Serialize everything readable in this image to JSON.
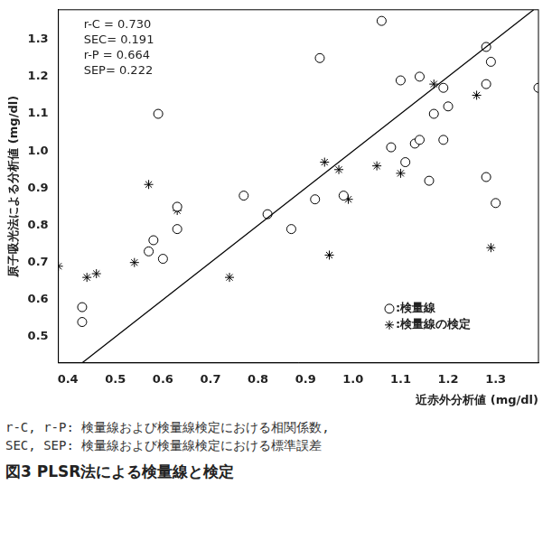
{
  "chart_data": {
    "type": "scatter",
    "title": "図3 PLSR法による検量線と検定",
    "notes": [
      "r-C, r-P: 検量線および検量線検定における相関係数,",
      "SEC, SEP: 検量線および検量線検定における標準誤差"
    ],
    "annotations": [
      "r-C = 0.730",
      "SEC= 0.191",
      "r-P = 0.664",
      "SEP= 0.222"
    ],
    "x_label": "近赤外分析値 (mg/dl)",
    "y_label": "原子吸光法による分析値 (mg/dl)",
    "xlim": [
      0.38,
      1.39
    ],
    "ylim": [
      0.43,
      1.38
    ],
    "xticks": [
      0.4,
      0.5,
      0.6,
      0.7,
      0.8,
      0.9,
      {
        "value": 1,
        "label": "1.0"
      },
      1.1,
      1.2,
      1.3
    ],
    "yticks": [
      0.5,
      0.6,
      0.7,
      0.8,
      0.9,
      {
        "value": 1,
        "label": "1.0"
      },
      1.1,
      1.2,
      1.3
    ],
    "grid": false,
    "legend": "lower right",
    "reference_line": {
      "x": [
        0.43,
        1.38
      ],
      "y": [
        0.43,
        1.38
      ],
      "color": "#000000"
    },
    "series": [
      {
        "name": ":検量線",
        "color": "#000000",
        "marker": "circle",
        "x": [
          0.43,
          0.43,
          0.57,
          0.58,
          0.6,
          0.59,
          0.63,
          0.63,
          0.77,
          0.82,
          0.87,
          0.92,
          0.93,
          0.98,
          1.06,
          1.08,
          1.1,
          1.11,
          1.13,
          1.14,
          1.14,
          1.16,
          1.17,
          1.19,
          1.19,
          1.2,
          1.28,
          1.28,
          1.29,
          1.28,
          1.3,
          1.39
        ],
        "values": [
          0.58,
          0.54,
          0.73,
          0.76,
          0.71,
          1.1,
          0.85,
          0.79,
          0.88,
          0.83,
          0.79,
          0.87,
          1.25,
          0.88,
          1.35,
          1.01,
          1.19,
          0.97,
          1.02,
          1.03,
          1.2,
          0.92,
          1.1,
          1.17,
          1.03,
          1.12,
          1.28,
          1.18,
          1.24,
          0.93,
          0.86,
          1.17
        ]
      },
      {
        "name": ":検量線の検定",
        "color": "#000000",
        "marker": "star",
        "x": [
          0.38,
          0.44,
          0.46,
          0.54,
          0.57,
          0.63,
          0.74,
          0.94,
          0.95,
          0.97,
          0.99,
          1.05,
          1.1,
          1.17,
          1.26,
          1.29
        ],
        "values": [
          0.69,
          0.66,
          0.67,
          0.7,
          0.91,
          0.84,
          0.66,
          0.97,
          0.72,
          0.95,
          0.87,
          0.96,
          0.94,
          1.18,
          1.15,
          0.74
        ]
      }
    ]
  }
}
